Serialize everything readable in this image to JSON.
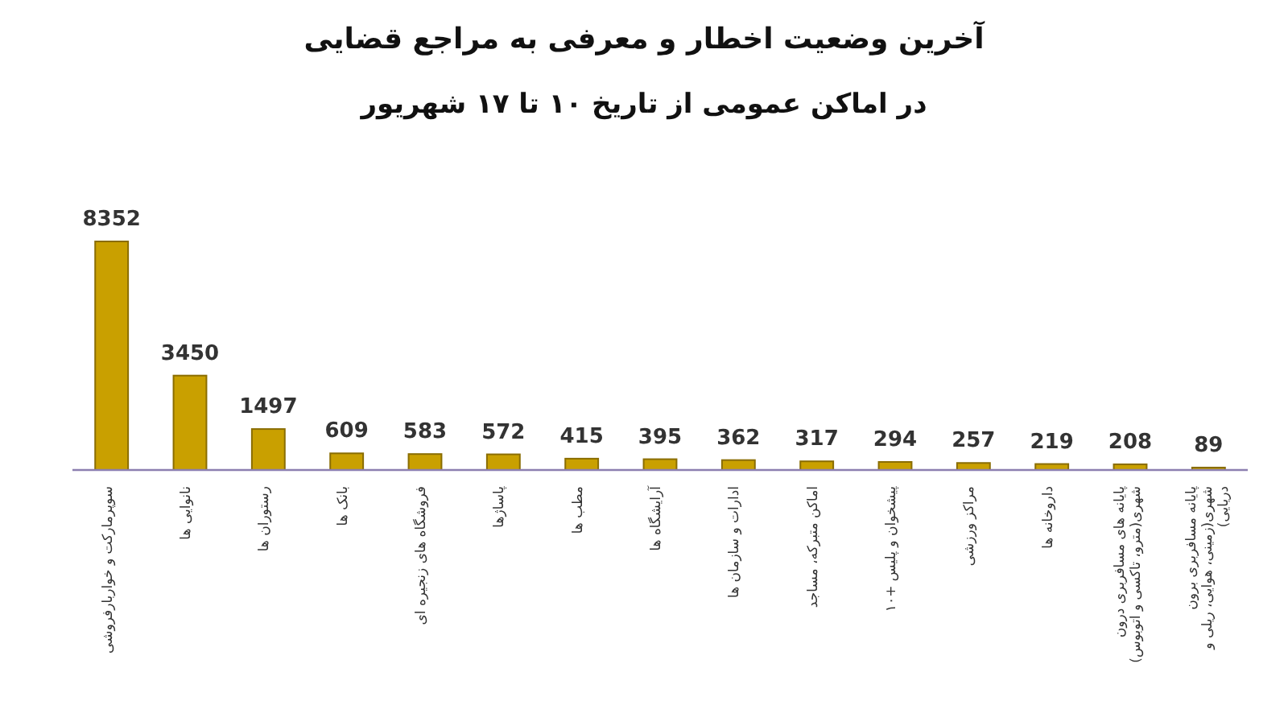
{
  "chart_data": {
    "type": "bar",
    "title": "آخرین وضعیت اخطار و معرفی به مراجع قضایی",
    "subtitle": "در اماکن عمومی از تاریخ ۱۰ تا ۱۷ شهریور",
    "categories": [
      "سوپرمارکت و خواربارفروشی",
      "نانوایی ها",
      "رستوران ها",
      "بانک ها",
      "فروشگاه های زنجیره ای",
      "پاساژها",
      "مطب ها",
      "آرایشگاه ها",
      "ادارات و سازمان ها",
      "اماکن متبرکه، مساجد",
      "پیشخوان و پلیس +۱۰",
      "مراکز ورزشی",
      "داروخانه ها",
      "پایانه های مسافربری درون شهری(مترو، تاکسی و اتوبوس)",
      "پایانه مسافربری برون شهری(زمینی، هوایی، ریلی و دریایی)"
    ],
    "values": [
      8352,
      3450,
      1497,
      609,
      583,
      572,
      415,
      395,
      362,
      317,
      294,
      257,
      219,
      208,
      89
    ],
    "color": "#c9a000",
    "data_labels": true,
    "tick_labels": "x"
  }
}
